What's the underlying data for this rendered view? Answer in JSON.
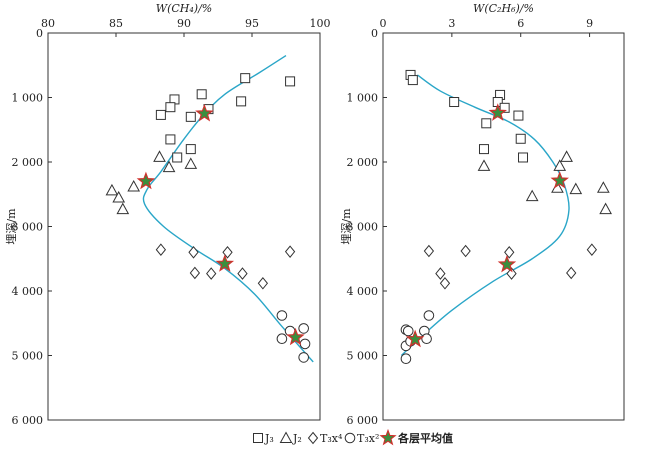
{
  "legend": {
    "items": [
      {
        "symbol": "square",
        "label": "J₃"
      },
      {
        "symbol": "triangle",
        "label": "J₂"
      },
      {
        "symbol": "diamond",
        "label": "T₃x⁴"
      },
      {
        "symbol": "circle",
        "label": "T₃x²"
      },
      {
        "symbol": "star",
        "label": "各层平均值"
      }
    ]
  },
  "colors": {
    "trend_line": "#2aa6c8",
    "star_fill": "#3a8f3f",
    "star_edge": "#d0312d",
    "axis": "#333333"
  },
  "chart_data": [
    {
      "type": "scatter",
      "xlabel": "W(CH₄)/%",
      "ylabel": "埋深/m",
      "xlim": [
        80,
        100
      ],
      "ylim": [
        0,
        6000
      ],
      "y_inverted": true,
      "x_axis_position": "top",
      "x_ticks": [
        80,
        85,
        90,
        95,
        100
      ],
      "x_tick_labels": [
        "80",
        "85",
        "90",
        "95",
        "100"
      ],
      "y_ticks": [
        0,
        1000,
        2000,
        3000,
        4000,
        5000,
        6000
      ],
      "y_tick_labels": [
        "0",
        "1 000",
        "2 000",
        "3 000",
        "4 000",
        "5 000",
        "6 000"
      ],
      "series": [
        {
          "name": "J₃",
          "marker": "square",
          "points": [
            [
              94.5,
              700
            ],
            [
              97.8,
              750
            ],
            [
              91.3,
              950
            ],
            [
              89.3,
              1030
            ],
            [
              94.2,
              1060
            ],
            [
              89.0,
              1150
            ],
            [
              91.8,
              1180
            ],
            [
              88.3,
              1270
            ],
            [
              90.5,
              1300
            ],
            [
              89.0,
              1650
            ],
            [
              90.5,
              1800
            ],
            [
              89.5,
              1930
            ]
          ]
        },
        {
          "name": "J₂",
          "marker": "triangle",
          "points": [
            [
              88.2,
              1920
            ],
            [
              90.5,
              2030
            ],
            [
              88.9,
              2080
            ],
            [
              86.3,
              2380
            ],
            [
              84.7,
              2440
            ],
            [
              85.2,
              2550
            ],
            [
              85.5,
              2730
            ]
          ]
        },
        {
          "name": "T₃x⁴",
          "marker": "diamond",
          "points": [
            [
              88.3,
              3360
            ],
            [
              90.7,
              3400
            ],
            [
              93.2,
              3400
            ],
            [
              97.8,
              3390
            ],
            [
              90.8,
              3720
            ],
            [
              92.0,
              3730
            ],
            [
              94.3,
              3730
            ],
            [
              95.8,
              3880
            ]
          ]
        },
        {
          "name": "T₃x²",
          "marker": "circle",
          "points": [
            [
              97.2,
              4380
            ],
            [
              97.8,
              4620
            ],
            [
              98.8,
              4580
            ],
            [
              97.2,
              4740
            ],
            [
              98.9,
              4820
            ],
            [
              98.8,
              5030
            ]
          ]
        },
        {
          "name": "各层平均值",
          "marker": "star",
          "points": [
            [
              91.5,
              1250
            ],
            [
              87.2,
              2300
            ],
            [
              93.0,
              3580
            ],
            [
              98.2,
              4720
            ]
          ]
        }
      ],
      "trend_line": [
        [
          97.5,
          350
        ],
        [
          95.5,
          620
        ],
        [
          93.0,
          950
        ],
        [
          91.3,
          1300
        ],
        [
          89.8,
          1700
        ],
        [
          88.3,
          2150
        ],
        [
          87.3,
          2420
        ],
        [
          87.1,
          2650
        ],
        [
          88.5,
          3000
        ],
        [
          90.8,
          3350
        ],
        [
          93.0,
          3650
        ],
        [
          95.2,
          4050
        ],
        [
          97.2,
          4550
        ],
        [
          99.5,
          5100
        ]
      ]
    },
    {
      "type": "scatter",
      "xlabel": "W(C₂H₆)/%",
      "ylabel": "埋深/m",
      "xlim": [
        0,
        10.5
      ],
      "ylim": [
        0,
        6000
      ],
      "y_inverted": true,
      "x_axis_position": "top",
      "x_ticks": [
        0,
        3,
        6,
        9
      ],
      "x_tick_labels": [
        "0",
        "3",
        "6",
        "9"
      ],
      "y_ticks": [
        0,
        1000,
        2000,
        3000,
        4000,
        5000,
        6000
      ],
      "y_tick_labels": [
        "0",
        "1 000",
        "2 000",
        "3 000",
        "4 000",
        "5 000",
        "6 000"
      ],
      "series": [
        {
          "name": "J₃",
          "marker": "square",
          "points": [
            [
              1.2,
              650
            ],
            [
              1.3,
              730
            ],
            [
              5.1,
              960
            ],
            [
              3.1,
              1070
            ],
            [
              5.0,
              1070
            ],
            [
              5.3,
              1160
            ],
            [
              5.9,
              1280
            ],
            [
              4.5,
              1400
            ],
            [
              6.0,
              1640
            ],
            [
              4.4,
              1800
            ],
            [
              6.1,
              1930
            ]
          ]
        },
        {
          "name": "J₂",
          "marker": "triangle",
          "points": [
            [
              8.0,
              1920
            ],
            [
              4.4,
              2060
            ],
            [
              7.7,
              2060
            ],
            [
              8.4,
              2420
            ],
            [
              7.6,
              2400
            ],
            [
              9.6,
              2400
            ],
            [
              6.5,
              2530
            ],
            [
              9.7,
              2730
            ]
          ]
        },
        {
          "name": "T₃x⁴",
          "marker": "diamond",
          "points": [
            [
              2.0,
              3380
            ],
            [
              3.6,
              3380
            ],
            [
              5.5,
              3400
            ],
            [
              9.1,
              3360
            ],
            [
              2.5,
              3730
            ],
            [
              2.7,
              3880
            ],
            [
              5.6,
              3730
            ],
            [
              8.2,
              3720
            ]
          ]
        },
        {
          "name": "T₃x²",
          "marker": "circle",
          "points": [
            [
              2.0,
              4380
            ],
            [
              1.0,
              4600
            ],
            [
              1.1,
              4620
            ],
            [
              1.8,
              4620
            ],
            [
              1.9,
              4740
            ],
            [
              1.0,
              4850
            ],
            [
              1.2,
              4780
            ],
            [
              1.0,
              5050
            ]
          ]
        },
        {
          "name": "各层平均值",
          "marker": "star",
          "points": [
            [
              5.0,
              1240
            ],
            [
              7.7,
              2290
            ],
            [
              5.4,
              3590
            ],
            [
              1.4,
              4750
            ]
          ]
        }
      ],
      "trend_line": [
        [
          1.5,
          650
        ],
        [
          2.5,
          900
        ],
        [
          4.0,
          1150
        ],
        [
          5.5,
          1380
        ],
        [
          6.6,
          1650
        ],
        [
          7.4,
          2000
        ],
        [
          7.9,
          2350
        ],
        [
          8.1,
          2750
        ],
        [
          7.7,
          3150
        ],
        [
          6.5,
          3500
        ],
        [
          4.8,
          3850
        ],
        [
          3.0,
          4300
        ],
        [
          1.7,
          4700
        ],
        [
          0.8,
          5000
        ]
      ]
    }
  ]
}
